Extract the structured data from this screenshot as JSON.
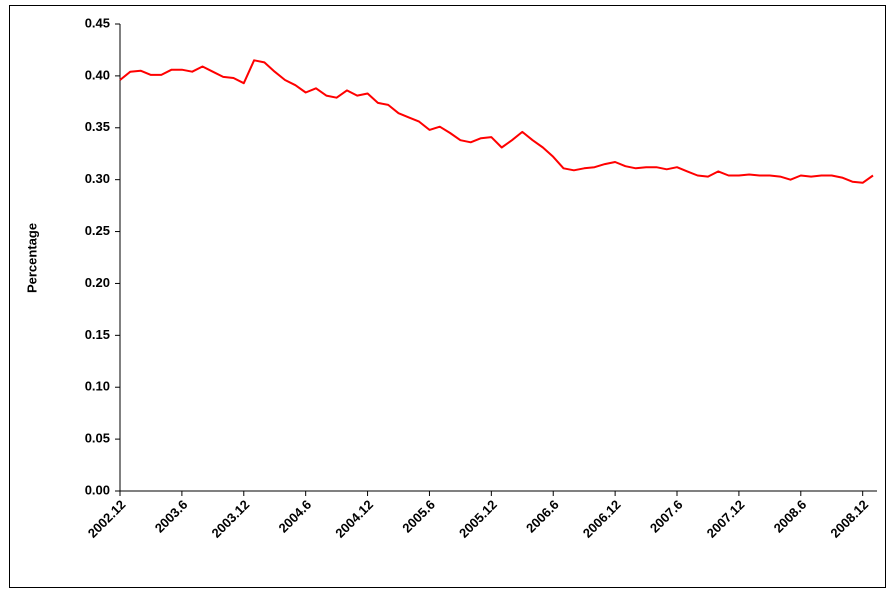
{
  "chart_data": {
    "type": "line",
    "y_label": "Percentage",
    "categories": [
      "2002.12",
      null,
      null,
      null,
      null,
      null,
      "2003.6",
      null,
      null,
      null,
      null,
      null,
      "2003.12",
      null,
      null,
      null,
      null,
      null,
      "2004.6",
      null,
      null,
      null,
      null,
      null,
      "2004.12",
      null,
      null,
      null,
      null,
      null,
      "2005.6",
      null,
      null,
      null,
      null,
      null,
      "2005.12",
      null,
      null,
      null,
      null,
      null,
      "2006.6",
      null,
      null,
      null,
      null,
      null,
      "2006.12",
      null,
      null,
      null,
      null,
      null,
      "2007.6",
      null,
      null,
      null,
      null,
      null,
      "2007.12",
      null,
      null,
      null,
      null,
      null,
      "2008.6",
      null,
      null,
      null,
      null,
      null,
      "2008.12",
      null
    ],
    "values": [
      0.396,
      0.404,
      0.405,
      0.401,
      0.401,
      0.406,
      0.406,
      0.404,
      0.409,
      0.404,
      0.399,
      0.398,
      0.393,
      0.415,
      0.413,
      0.404,
      0.396,
      0.391,
      0.384,
      0.388,
      0.381,
      0.379,
      0.386,
      0.381,
      0.383,
      0.374,
      0.372,
      0.364,
      0.36,
      0.356,
      0.348,
      0.351,
      0.345,
      0.338,
      0.336,
      0.34,
      0.341,
      0.331,
      0.338,
      0.346,
      0.338,
      0.331,
      0.322,
      0.311,
      0.309,
      0.311,
      0.312,
      0.315,
      0.317,
      0.313,
      0.311,
      0.312,
      0.312,
      0.31,
      0.312,
      0.308,
      0.304,
      0.303,
      0.308,
      0.304,
      0.304,
      0.305,
      0.304,
      0.304,
      0.303,
      0.3,
      0.304,
      0.303,
      0.304,
      0.304,
      0.302,
      0.298,
      0.297,
      0.304
    ],
    "color": "#ff0000",
    "ylim": [
      0,
      0.45
    ],
    "yticks": [
      {
        "value": 0,
        "label": "0.00"
      },
      0.05,
      {
        "value": 0.1,
        "label": "0.10"
      },
      0.15,
      {
        "value": 0.2,
        "label": "0.20"
      },
      0.25,
      {
        "value": 0.3,
        "label": "0.30"
      },
      0.35,
      {
        "value": 0.4,
        "label": "0.40"
      },
      0.45
    ],
    "grid": false
  }
}
